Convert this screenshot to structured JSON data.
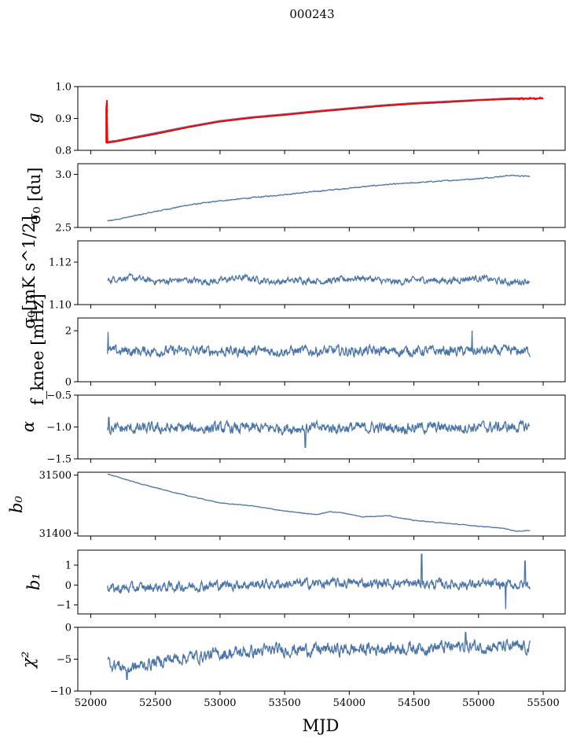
{
  "figure": {
    "title": "000243",
    "xlabel": "MJD"
  },
  "colors": {
    "series": "#4a74a8",
    "highlight": "#ff0000"
  },
  "chart_data": [
    {
      "type": "line",
      "ylabel": "g",
      "xlim": [
        51900,
        55670
      ],
      "ylim": [
        0.8,
        1.0
      ],
      "yticks": [
        0.8,
        0.9,
        1.0
      ],
      "ytick_labels": [
        "0.8",
        "0.9",
        "1.0"
      ],
      "series": [
        {
          "name": "blue",
          "x": [
            52120,
            52200,
            52300,
            52500,
            52750,
            53000,
            53250,
            53500,
            53750,
            54000,
            54250,
            54500,
            54750,
            55000,
            55250,
            55400
          ],
          "values": [
            0.826,
            0.83,
            0.838,
            0.854,
            0.874,
            0.892,
            0.904,
            0.913,
            0.923,
            0.932,
            0.941,
            0.948,
            0.953,
            0.958,
            0.963,
            0.962
          ]
        },
        {
          "name": "red",
          "x": [
            52120,
            52200,
            52300,
            52500,
            52750,
            53000,
            53250,
            53500,
            53750,
            54000,
            54250,
            54500,
            54750,
            55000,
            55250,
            55500
          ],
          "values": [
            0.823,
            0.828,
            0.836,
            0.851,
            0.872,
            0.89,
            0.902,
            0.911,
            0.921,
            0.93,
            0.939,
            0.946,
            0.951,
            0.957,
            0.961,
            0.963
          ]
        }
      ],
      "spike": {
        "x": 52120,
        "from": 0.823,
        "to": 0.958
      }
    },
    {
      "type": "line",
      "ylabel": "σ₀ [du]",
      "xlim": [
        51900,
        55670
      ],
      "ylim": [
        2.5,
        3.1
      ],
      "yticks": [
        2.5,
        3.0
      ],
      "ytick_labels": [
        "2.5",
        "3.0"
      ],
      "trend": {
        "x": [
          52130,
          52300,
          52500,
          52750,
          53000,
          53250,
          53500,
          53750,
          54000,
          54250,
          54500,
          54750,
          55000,
          55250,
          55400
        ],
        "values": [
          2.56,
          2.6,
          2.65,
          2.71,
          2.75,
          2.78,
          2.81,
          2.84,
          2.87,
          2.9,
          2.92,
          2.94,
          2.96,
          2.99,
          2.98
        ]
      },
      "noise": 0.004
    },
    {
      "type": "line",
      "ylabel": "σ₀[mK s^1/2]",
      "xlim": [
        51900,
        55670
      ],
      "ylim": [
        1.1,
        1.13
      ],
      "yticks": [
        1.1,
        1.12
      ],
      "ytick_labels": [
        "1.10",
        "1.12"
      ],
      "trend": {
        "x": [
          52130,
          55400
        ],
        "values": [
          1.1115,
          1.1115
        ]
      },
      "noise": 0.0012,
      "wave": 0.0011
    },
    {
      "type": "line",
      "ylabel": "f_knee [mHz]",
      "xlim": [
        51900,
        55670
      ],
      "ylim": [
        0,
        2.5
      ],
      "yticks": [
        0,
        2
      ],
      "ytick_labels": [
        "0",
        "2"
      ],
      "trend": {
        "x": [
          52130,
          55400
        ],
        "values": [
          1.2,
          1.2
        ]
      },
      "noise": 0.16,
      "peaks": [
        {
          "x": 52135,
          "y": 1.95
        },
        {
          "x": 54950,
          "y": 2.0
        }
      ]
    },
    {
      "type": "line",
      "ylabel": "α",
      "xlim": [
        51900,
        55670
      ],
      "ylim": [
        -1.5,
        -0.5
      ],
      "yticks": [
        -1.5,
        -1.0,
        -0.5
      ],
      "ytick_labels": [
        "−1.5",
        "−1.0",
        "−0.5"
      ],
      "trend": {
        "x": [
          52130,
          55400
        ],
        "values": [
          -1.03,
          -1.0
        ]
      },
      "noise": 0.07,
      "peaks": [
        {
          "x": 52140,
          "y": -0.85
        },
        {
          "x": 53660,
          "y": -1.32
        }
      ]
    },
    {
      "type": "line",
      "ylabel": "b₀",
      "xlim": [
        51900,
        55670
      ],
      "ylim": [
        31395,
        31505
      ],
      "yticks": [
        31400,
        31500
      ],
      "ytick_labels": [
        "31400",
        "31500"
      ],
      "trend": {
        "x": [
          52130,
          52400,
          52700,
          53000,
          53250,
          53500,
          53750,
          53850,
          53950,
          54100,
          54300,
          54500,
          54750,
          55000,
          55200,
          55300,
          55400
        ],
        "values": [
          31502,
          31484,
          31467,
          31452,
          31447,
          31438,
          31432,
          31437,
          31435,
          31428,
          31430,
          31422,
          31417,
          31412,
          31408,
          31403,
          31405
        ]
      },
      "noise": 0.4
    },
    {
      "type": "line",
      "ylabel": "b₁",
      "xlim": [
        51900,
        55670
      ],
      "ylim": [
        -1.45,
        1.75
      ],
      "yticks": [
        -1,
        0,
        1
      ],
      "ytick_labels": [
        "−1",
        "0",
        "1"
      ],
      "trend": {
        "x": [
          52130,
          53000,
          54000,
          55400
        ],
        "values": [
          -0.2,
          0.0,
          0.1,
          0.0
        ]
      },
      "noise": 0.2,
      "peaks": [
        {
          "x": 54560,
          "y": 1.55
        },
        {
          "x": 55210,
          "y": -1.2
        },
        {
          "x": 55360,
          "y": 1.2
        }
      ]
    },
    {
      "type": "line",
      "ylabel": "χ²",
      "xlabel": "MJD",
      "xlim": [
        51900,
        55670
      ],
      "ylim": [
        -10,
        0
      ],
      "yticks": [
        -10,
        -5,
        0
      ],
      "ytick_labels": [
        "−10",
        "−5",
        "0"
      ],
      "xticks": [
        52000,
        52500,
        53000,
        53500,
        54000,
        54500,
        55000,
        55500
      ],
      "xtick_labels": [
        "52000",
        "52500",
        "53000",
        "53500",
        "54000",
        "54500",
        "55000",
        "55500"
      ],
      "trend": {
        "x": [
          52130,
          52300,
          52600,
          53000,
          53500,
          54000,
          54500,
          55000,
          55400
        ],
        "values": [
          -5.5,
          -6.5,
          -5.0,
          -4.2,
          -3.5,
          -3.5,
          -3.2,
          -3.0,
          -3.2
        ]
      },
      "noise": 0.8,
      "peaks": [
        {
          "x": 54900,
          "y": -0.8
        },
        {
          "x": 52280,
          "y": -8.2
        }
      ]
    }
  ]
}
